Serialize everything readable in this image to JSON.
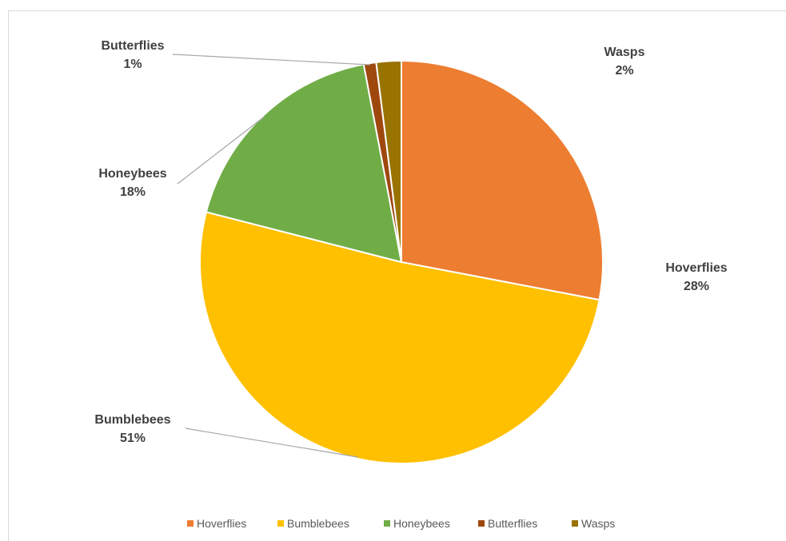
{
  "chart_data": {
    "type": "pie",
    "title": "",
    "legend_position": "bottom",
    "slices": [
      {
        "name": "Hoverflies",
        "value": 28,
        "label": "28%",
        "color": "#ed7d31"
      },
      {
        "name": "Bumblebees",
        "value": 51,
        "label": "51%",
        "color": "#ffc000"
      },
      {
        "name": "Honeybees",
        "value": 18,
        "label": "18%",
        "color": "#70ad47"
      },
      {
        "name": "Butterflies",
        "value": 1,
        "label": "1%",
        "color": "#9e480e"
      },
      {
        "name": "Wasps",
        "value": 2,
        "label": "2%",
        "color": "#997300"
      }
    ]
  }
}
